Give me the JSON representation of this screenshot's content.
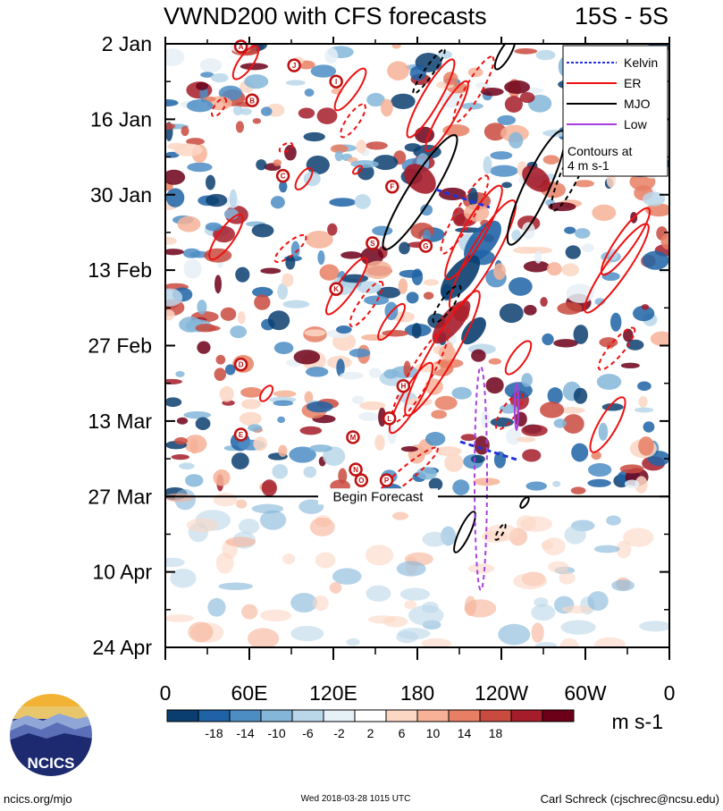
{
  "chart_data": {
    "type": "heatmap",
    "title": "VWND200 with CFS forecasts",
    "region": "15S - 5S",
    "x_tick_labels": [
      "0",
      "60E",
      "120E",
      "180",
      "120W",
      "60W",
      "0"
    ],
    "x_ticks_deg": [
      0,
      60,
      120,
      180,
      240,
      300,
      360
    ],
    "y_tick_labels": [
      "2 Jan",
      "16 Jan",
      "30 Jan",
      "13 Feb",
      "27 Feb",
      "13 Mar",
      "27 Mar",
      "10 Apr",
      "24 Apr"
    ],
    "y_ticks_day": [
      0,
      14,
      28,
      42,
      56,
      70,
      84,
      98,
      112
    ],
    "ylim_days": [
      0,
      112
    ],
    "forecast_start_day": 84,
    "forecast_label": "Begin Forecast",
    "units": "m s-1",
    "colorbar_labels": [
      "-18",
      "-14",
      "-10",
      "-6",
      "-2",
      "2",
      "6",
      "10",
      "14",
      "18"
    ],
    "colorbar_colors": [
      "#0a3e70",
      "#1f63a6",
      "#4c8dc4",
      "#84b6d9",
      "#bad7ea",
      "#e6f0f7",
      "#ffffff",
      "#fbd7c4",
      "#f6b196",
      "#e87f64",
      "#c94a3f",
      "#a51c2a",
      "#6d0019"
    ],
    "legend": [
      {
        "name": "Kelvin",
        "color": "#2233dd",
        "dashed": true
      },
      {
        "name": "ER",
        "color": "#ee1111",
        "dashed": false
      },
      {
        "name": "MJO",
        "color": "#000000",
        "dashed": false
      },
      {
        "name": "Low",
        "color": "#a93ee0",
        "dashed": false
      }
    ],
    "legend_note": [
      "Contours at",
      "4 m s-1"
    ],
    "tc_labels": [
      {
        "letter": "A",
        "lon": 54,
        "day": 0.5
      },
      {
        "letter": "B",
        "lon": 62,
        "day": 10.5
      },
      {
        "letter": "C",
        "lon": 84,
        "day": 24.5
      },
      {
        "letter": "D",
        "lon": 54,
        "day": 59.5
      },
      {
        "letter": "E",
        "lon": 54,
        "day": 72.5
      },
      {
        "letter": "F",
        "lon": 162,
        "day": 26.5
      },
      {
        "letter": "G",
        "lon": 186,
        "day": 37.5
      },
      {
        "letter": "H",
        "lon": 170,
        "day": 63.5
      },
      {
        "letter": "I",
        "lon": 122,
        "day": 7
      },
      {
        "letter": "J",
        "lon": 92,
        "day": 4
      },
      {
        "letter": "K",
        "lon": 122,
        "day": 45.5
      },
      {
        "letter": "L",
        "lon": 160,
        "day": 69.5
      },
      {
        "letter": "M",
        "lon": 134,
        "day": 73
      },
      {
        "letter": "N",
        "lon": 136,
        "day": 79
      },
      {
        "letter": "O",
        "lon": 140,
        "day": 81
      },
      {
        "letter": "P",
        "lon": 158,
        "day": 81
      },
      {
        "letter": "S",
        "lon": 148,
        "day": 37
      }
    ]
  },
  "logo": {
    "text": "NCICS"
  },
  "footer": {
    "left": "ncics.org/mjo",
    "center": "Wed 2018-03-28 1015 UTC",
    "right": "Carl Schreck (cjschrec@ncsu.edu)"
  }
}
